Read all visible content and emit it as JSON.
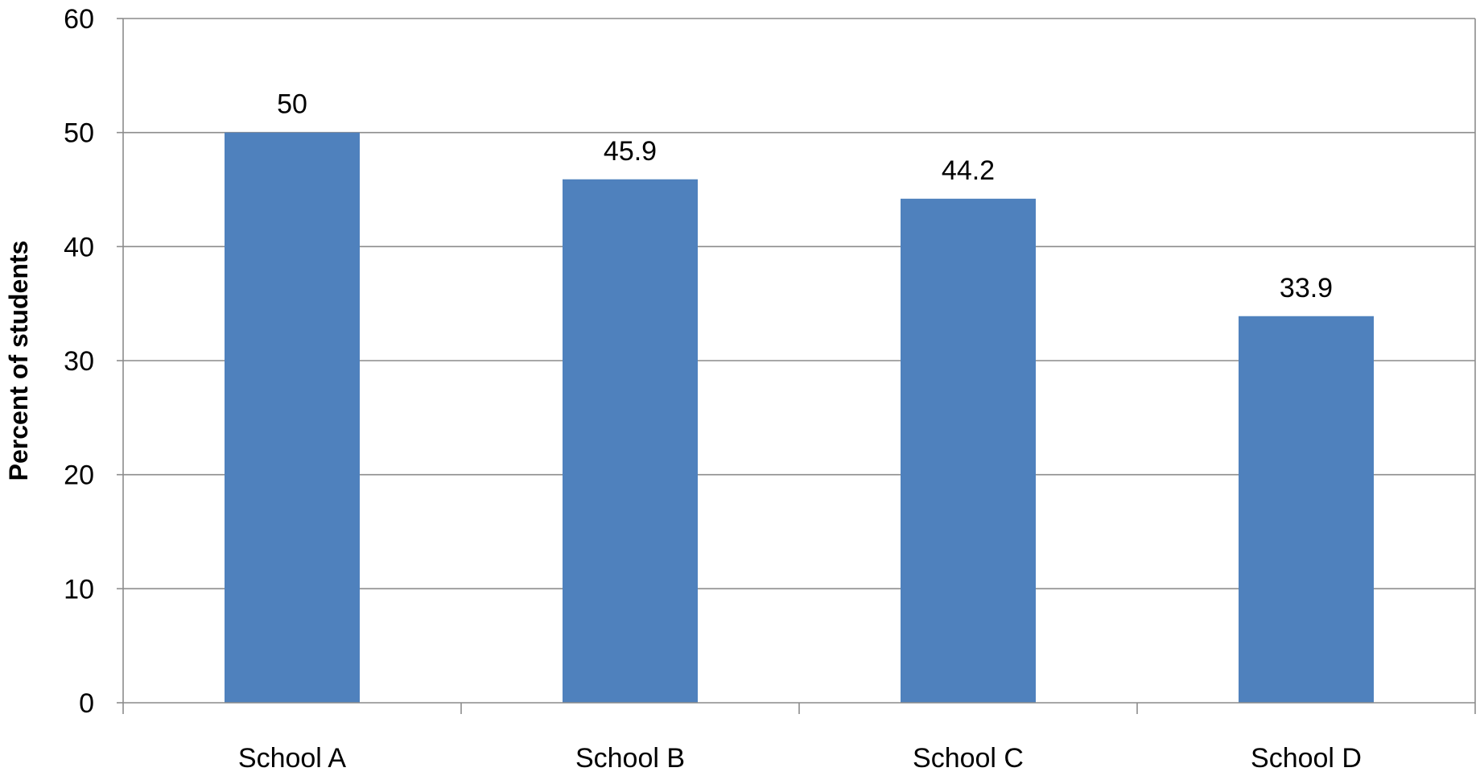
{
  "chart_data": {
    "type": "bar",
    "title": "",
    "xlabel": "",
    "ylabel": "Percent of students",
    "categories": [
      "School A",
      "School B",
      "School C",
      "School D"
    ],
    "values": [
      50,
      45.9,
      44.2,
      33.9
    ],
    "data_labels": [
      "50",
      "45.9",
      "44.2",
      "33.9"
    ],
    "ylim": [
      0,
      60
    ],
    "yticks": [
      0,
      10,
      20,
      30,
      40,
      50,
      60
    ],
    "grid": true,
    "legend": "none",
    "colors": {
      "bar": "#4F81BD",
      "grid": "#8C8C8C",
      "text": "#000000"
    }
  }
}
